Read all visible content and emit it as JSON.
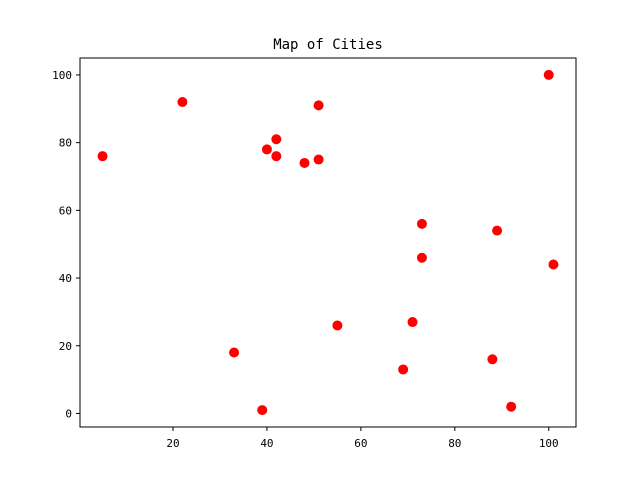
{
  "chart_data": {
    "type": "scatter",
    "title": "Map of Cities",
    "xlabel": "",
    "ylabel": "",
    "xlim": [
      0.2,
      105.8
    ],
    "ylim": [
      -4,
      105
    ],
    "xticks": [
      20,
      40,
      60,
      80,
      100
    ],
    "yticks": [
      0,
      20,
      40,
      60,
      80,
      100
    ],
    "grid": false,
    "legend": false,
    "marker_color": "#ff0000",
    "points": [
      {
        "x": 5,
        "y": 76
      },
      {
        "x": 22,
        "y": 92
      },
      {
        "x": 33,
        "y": 18
      },
      {
        "x": 39,
        "y": 1
      },
      {
        "x": 40,
        "y": 78
      },
      {
        "x": 42,
        "y": 81
      },
      {
        "x": 42,
        "y": 76
      },
      {
        "x": 48,
        "y": 74
      },
      {
        "x": 51,
        "y": 91
      },
      {
        "x": 51,
        "y": 75
      },
      {
        "x": 55,
        "y": 26
      },
      {
        "x": 69,
        "y": 13
      },
      {
        "x": 71,
        "y": 27
      },
      {
        "x": 73,
        "y": 56
      },
      {
        "x": 73,
        "y": 46
      },
      {
        "x": 88,
        "y": 16
      },
      {
        "x": 89,
        "y": 54
      },
      {
        "x": 92,
        "y": 2
      },
      {
        "x": 100,
        "y": 100
      },
      {
        "x": 101,
        "y": 44
      }
    ]
  }
}
